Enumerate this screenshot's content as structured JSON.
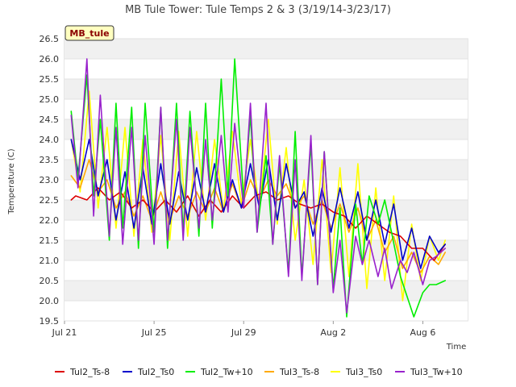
{
  "chart_data": {
    "type": "line",
    "title": "MB Tule Tower: Tule Temps 2 & 3 (3/19/14-3/23/17)",
    "xlabel": "Time",
    "ylabel": "Temperature (C)",
    "badge": "MB_tule",
    "ylim": [
      19.5,
      26.5
    ],
    "xlim": [
      0,
      18
    ],
    "x_unit": "days since Jul 21",
    "yticks": [
      "19.5",
      "20.0",
      "20.5",
      "21.0",
      "21.5",
      "22.0",
      "22.5",
      "23.0",
      "23.5",
      "24.0",
      "24.5",
      "25.0",
      "25.5",
      "26.0",
      "26.5"
    ],
    "xticks": [
      {
        "value": 0,
        "label": "Jul 21"
      },
      {
        "value": 4,
        "label": "Jul 25"
      },
      {
        "value": 8,
        "label": "Jul 29"
      },
      {
        "value": 12,
        "label": "Aug 2"
      },
      {
        "value": 16,
        "label": "Aug 6"
      }
    ],
    "series": [
      {
        "name": "Tul2_Ts-8",
        "color": "#dd0000",
        "x": [
          0.3,
          0.5,
          1.0,
          1.5,
          2.0,
          2.5,
          3.0,
          3.5,
          4.0,
          4.5,
          5.0,
          5.5,
          6.0,
          6.5,
          7.0,
          7.5,
          8.0,
          8.5,
          9.0,
          9.5,
          10.0,
          10.5,
          11.0,
          11.5,
          12.0,
          12.5,
          13.0,
          13.5,
          14.0,
          14.5,
          15.0,
          15.5,
          16.0,
          16.5,
          17.0
        ],
        "values": [
          22.5,
          22.6,
          22.5,
          22.8,
          22.5,
          22.7,
          22.3,
          22.5,
          22.2,
          22.5,
          22.2,
          22.6,
          22.1,
          22.5,
          22.2,
          22.6,
          22.3,
          22.6,
          22.7,
          22.5,
          22.6,
          22.4,
          22.3,
          22.4,
          22.2,
          22.1,
          21.8,
          22.1,
          21.9,
          21.7,
          21.6,
          21.3,
          21.3,
          21.0,
          21.4
        ]
      },
      {
        "name": "Tul2_Ts0",
        "color": "#0000cc",
        "x": [
          0.3,
          0.7,
          1.1,
          1.5,
          1.9,
          2.3,
          2.7,
          3.1,
          3.5,
          3.9,
          4.3,
          4.7,
          5.1,
          5.5,
          5.9,
          6.3,
          6.7,
          7.1,
          7.5,
          7.9,
          8.3,
          8.7,
          9.1,
          9.5,
          9.9,
          10.3,
          10.7,
          11.1,
          11.5,
          11.9,
          12.3,
          12.7,
          13.1,
          13.5,
          13.9,
          14.3,
          14.7,
          15.1,
          15.5,
          15.9,
          16.3,
          16.7,
          17.0
        ],
        "values": [
          24.0,
          23.0,
          24.0,
          22.6,
          23.5,
          22.0,
          23.2,
          21.8,
          23.3,
          21.9,
          23.4,
          21.9,
          23.2,
          22.0,
          23.3,
          22.2,
          23.4,
          22.2,
          23.0,
          22.3,
          23.4,
          22.3,
          23.5,
          22.0,
          23.4,
          22.3,
          22.7,
          21.6,
          22.8,
          21.7,
          22.8,
          21.8,
          22.7,
          21.5,
          22.5,
          21.4,
          22.4,
          21.0,
          21.8,
          20.8,
          21.6,
          21.2,
          21.4
        ]
      },
      {
        "name": "Tul2_Tw+10",
        "color": "#00ee00",
        "x": [
          0.3,
          0.6,
          1.0,
          1.3,
          1.6,
          2.0,
          2.3,
          2.6,
          3.0,
          3.3,
          3.6,
          4.0,
          4.3,
          4.6,
          5.0,
          5.3,
          5.6,
          6.0,
          6.3,
          6.6,
          7.0,
          7.3,
          7.6,
          8.0,
          8.3,
          8.6,
          9.0,
          9.3,
          9.6,
          10.0,
          10.3,
          10.6,
          11.0,
          11.3,
          11.6,
          12.0,
          12.3,
          12.6,
          13.0,
          13.3,
          13.6,
          14.0,
          14.3,
          14.6,
          15.0,
          15.3,
          15.6,
          16.0,
          16.3,
          16.6,
          17.0
        ],
        "values": [
          24.7,
          23.0,
          25.6,
          22.6,
          24.5,
          21.5,
          24.9,
          21.8,
          24.8,
          21.3,
          24.9,
          21.7,
          24.8,
          21.3,
          24.9,
          21.7,
          24.7,
          21.6,
          24.9,
          21.8,
          25.5,
          22.6,
          26.0,
          22.5,
          24.6,
          21.7,
          23.6,
          21.4,
          23.4,
          20.7,
          24.2,
          20.6,
          23.9,
          20.4,
          23.7,
          20.3,
          22.3,
          19.6,
          22.4,
          20.9,
          22.6,
          21.9,
          22.5,
          21.7,
          20.6,
          20.1,
          19.6,
          20.2,
          20.4,
          20.4,
          20.5
        ]
      },
      {
        "name": "Tul3_Ts-8",
        "color": "#ffaa00",
        "x": [
          0.3,
          0.7,
          1.1,
          1.5,
          1.9,
          2.3,
          2.7,
          3.1,
          3.5,
          3.9,
          4.3,
          4.7,
          5.1,
          5.5,
          5.9,
          6.3,
          6.7,
          7.1,
          7.5,
          7.9,
          8.3,
          8.7,
          9.1,
          9.5,
          9.9,
          10.3,
          10.7,
          11.1,
          11.5,
          11.9,
          12.3,
          12.7,
          13.1,
          13.5,
          13.9,
          14.3,
          14.7,
          15.1,
          15.5,
          15.9,
          16.3,
          16.7,
          17.0
        ],
        "values": [
          23.1,
          22.8,
          23.5,
          22.7,
          23.0,
          22.3,
          22.7,
          22.1,
          22.6,
          22.0,
          22.7,
          22.0,
          22.6,
          22.1,
          22.7,
          22.2,
          22.8,
          22.2,
          22.9,
          22.3,
          23.0,
          22.5,
          23.0,
          22.6,
          22.9,
          22.3,
          22.6,
          21.9,
          22.5,
          21.8,
          22.4,
          21.7,
          22.3,
          21.5,
          22.0,
          21.2,
          21.6,
          20.8,
          21.2,
          20.7,
          21.1,
          20.9,
          21.2
        ]
      },
      {
        "name": "Tul3_Ts0",
        "color": "#ffff00",
        "x": [
          0.3,
          0.7,
          1.1,
          1.5,
          1.9,
          2.3,
          2.7,
          3.1,
          3.5,
          3.9,
          4.3,
          4.7,
          5.1,
          5.5,
          5.9,
          6.3,
          6.7,
          7.1,
          7.5,
          7.9,
          8.3,
          8.7,
          9.1,
          9.5,
          9.9,
          10.3,
          10.7,
          11.1,
          11.5,
          11.9,
          12.3,
          12.7,
          13.1,
          13.5,
          13.9,
          14.3,
          14.7,
          15.1,
          15.5,
          15.9,
          16.3,
          16.7,
          17.0
        ],
        "values": [
          24.0,
          22.7,
          25.2,
          22.3,
          24.3,
          21.8,
          24.3,
          21.6,
          24.0,
          21.7,
          24.1,
          21.5,
          24.2,
          21.6,
          24.2,
          22.0,
          24.0,
          22.2,
          24.2,
          22.4,
          24.0,
          22.3,
          24.5,
          21.9,
          23.8,
          21.5,
          23.0,
          20.9,
          23.5,
          20.7,
          23.3,
          20.6,
          23.4,
          20.3,
          22.8,
          20.5,
          22.6,
          20.0,
          21.9,
          20.5,
          21.6,
          21.0,
          21.5
        ]
      },
      {
        "name": "Tul3_Tw+10",
        "color": "#9922cc",
        "x": [
          0.3,
          0.6,
          1.0,
          1.3,
          1.6,
          2.0,
          2.3,
          2.6,
          3.0,
          3.3,
          3.6,
          4.0,
          4.3,
          4.6,
          5.0,
          5.3,
          5.6,
          6.0,
          6.3,
          6.6,
          7.0,
          7.3,
          7.6,
          8.0,
          8.3,
          8.6,
          9.0,
          9.3,
          9.6,
          10.0,
          10.3,
          10.6,
          11.0,
          11.3,
          11.6,
          12.0,
          12.3,
          12.6,
          13.0,
          13.3,
          13.6,
          14.0,
          14.3,
          14.6,
          15.0,
          15.3,
          15.6,
          16.0,
          16.3,
          16.6,
          17.0
        ],
        "values": [
          24.6,
          22.8,
          26.0,
          22.1,
          25.1,
          21.6,
          24.3,
          21.4,
          24.3,
          21.5,
          24.1,
          21.4,
          24.8,
          21.5,
          24.5,
          21.5,
          24.3,
          21.8,
          24.0,
          22.0,
          24.1,
          22.2,
          24.4,
          22.3,
          24.9,
          21.7,
          24.9,
          21.4,
          23.6,
          20.6,
          23.5,
          20.5,
          24.1,
          20.4,
          23.7,
          20.2,
          21.5,
          19.7,
          21.6,
          20.9,
          21.5,
          20.6,
          21.3,
          20.3,
          21.0,
          20.7,
          21.2,
          20.4,
          21.0,
          21.1,
          21.3
        ]
      }
    ]
  }
}
